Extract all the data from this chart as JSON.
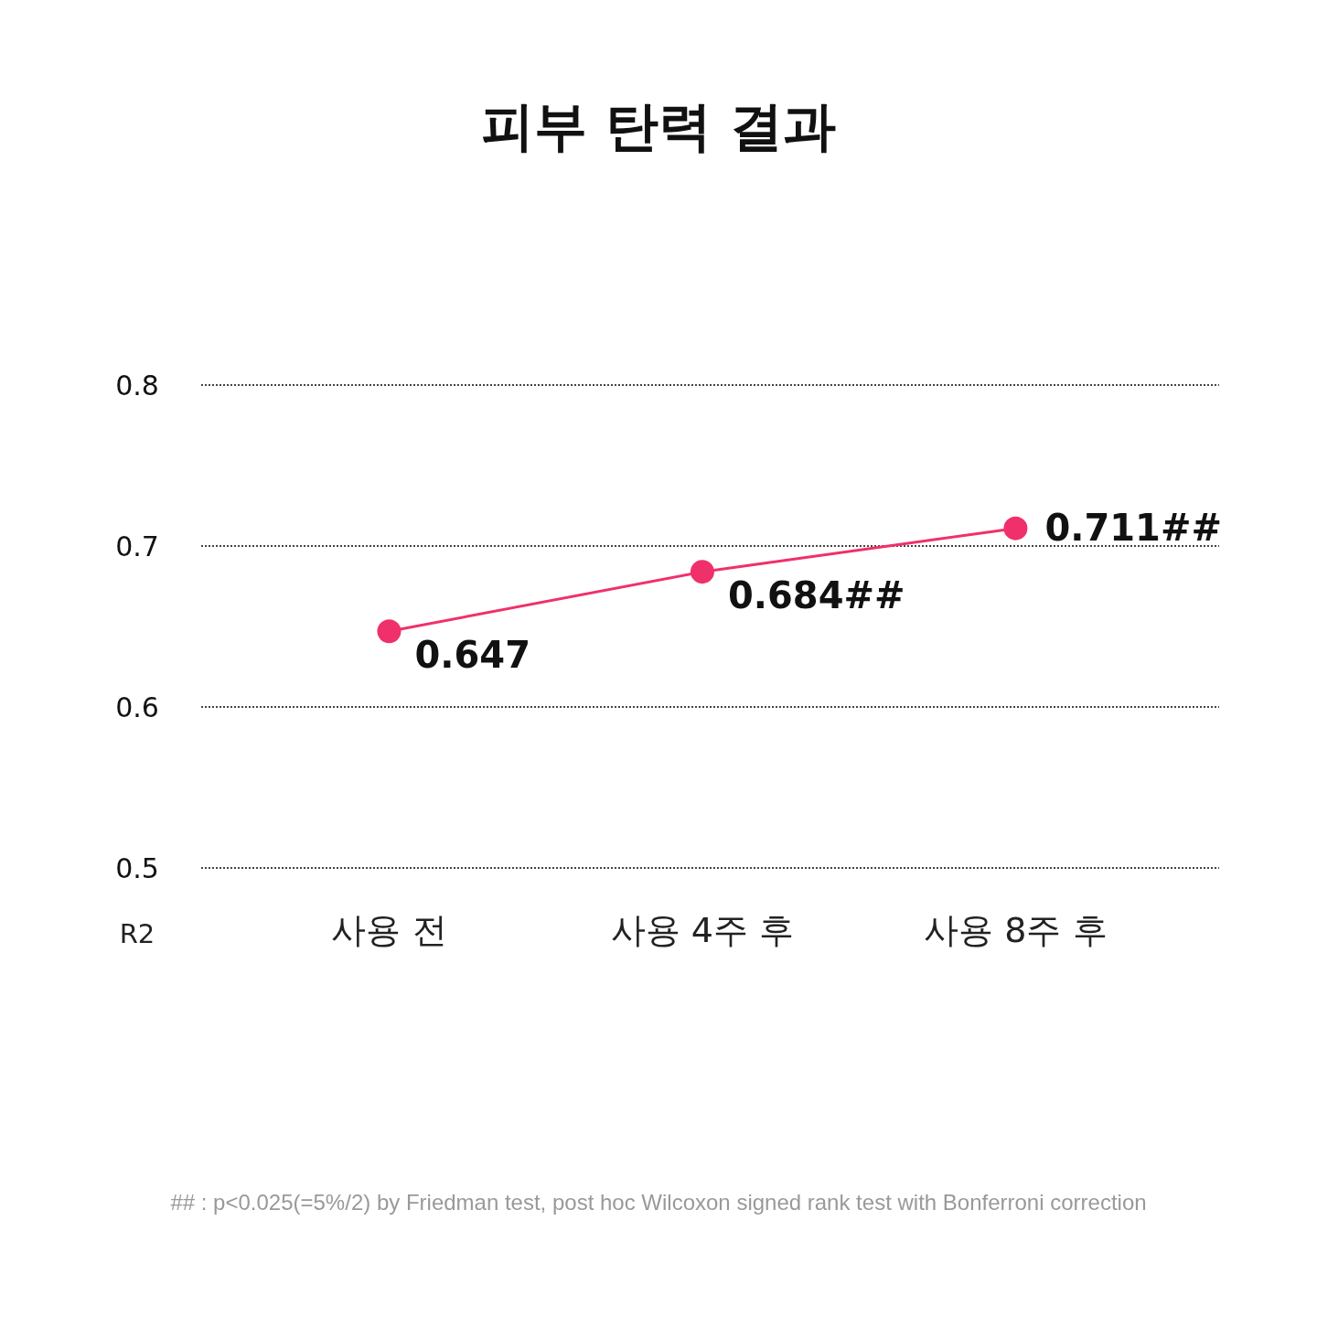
{
  "chart_data": {
    "type": "line",
    "title": "피부 탄력 결과",
    "ylabel": "R2",
    "categories": [
      "사용 전",
      "사용 4주 후",
      "사용 8주 후"
    ],
    "series": [
      {
        "color": "#f0306a",
        "values": [
          0.647,
          0.684,
          0.711
        ],
        "value_labels": [
          "0.647",
          "0.684##",
          "0.711##"
        ]
      }
    ],
    "ylim": [
      0.5,
      0.8
    ],
    "yticks": [
      0.5,
      0.6,
      0.7,
      0.8
    ],
    "grid": "y",
    "marker": "circle",
    "line_style": "solid",
    "annotations": [
      "## : p<0.025(=5%/2) by Friedman test, post hoc Wilcoxon signed rank test with Bonferroni correction"
    ]
  }
}
